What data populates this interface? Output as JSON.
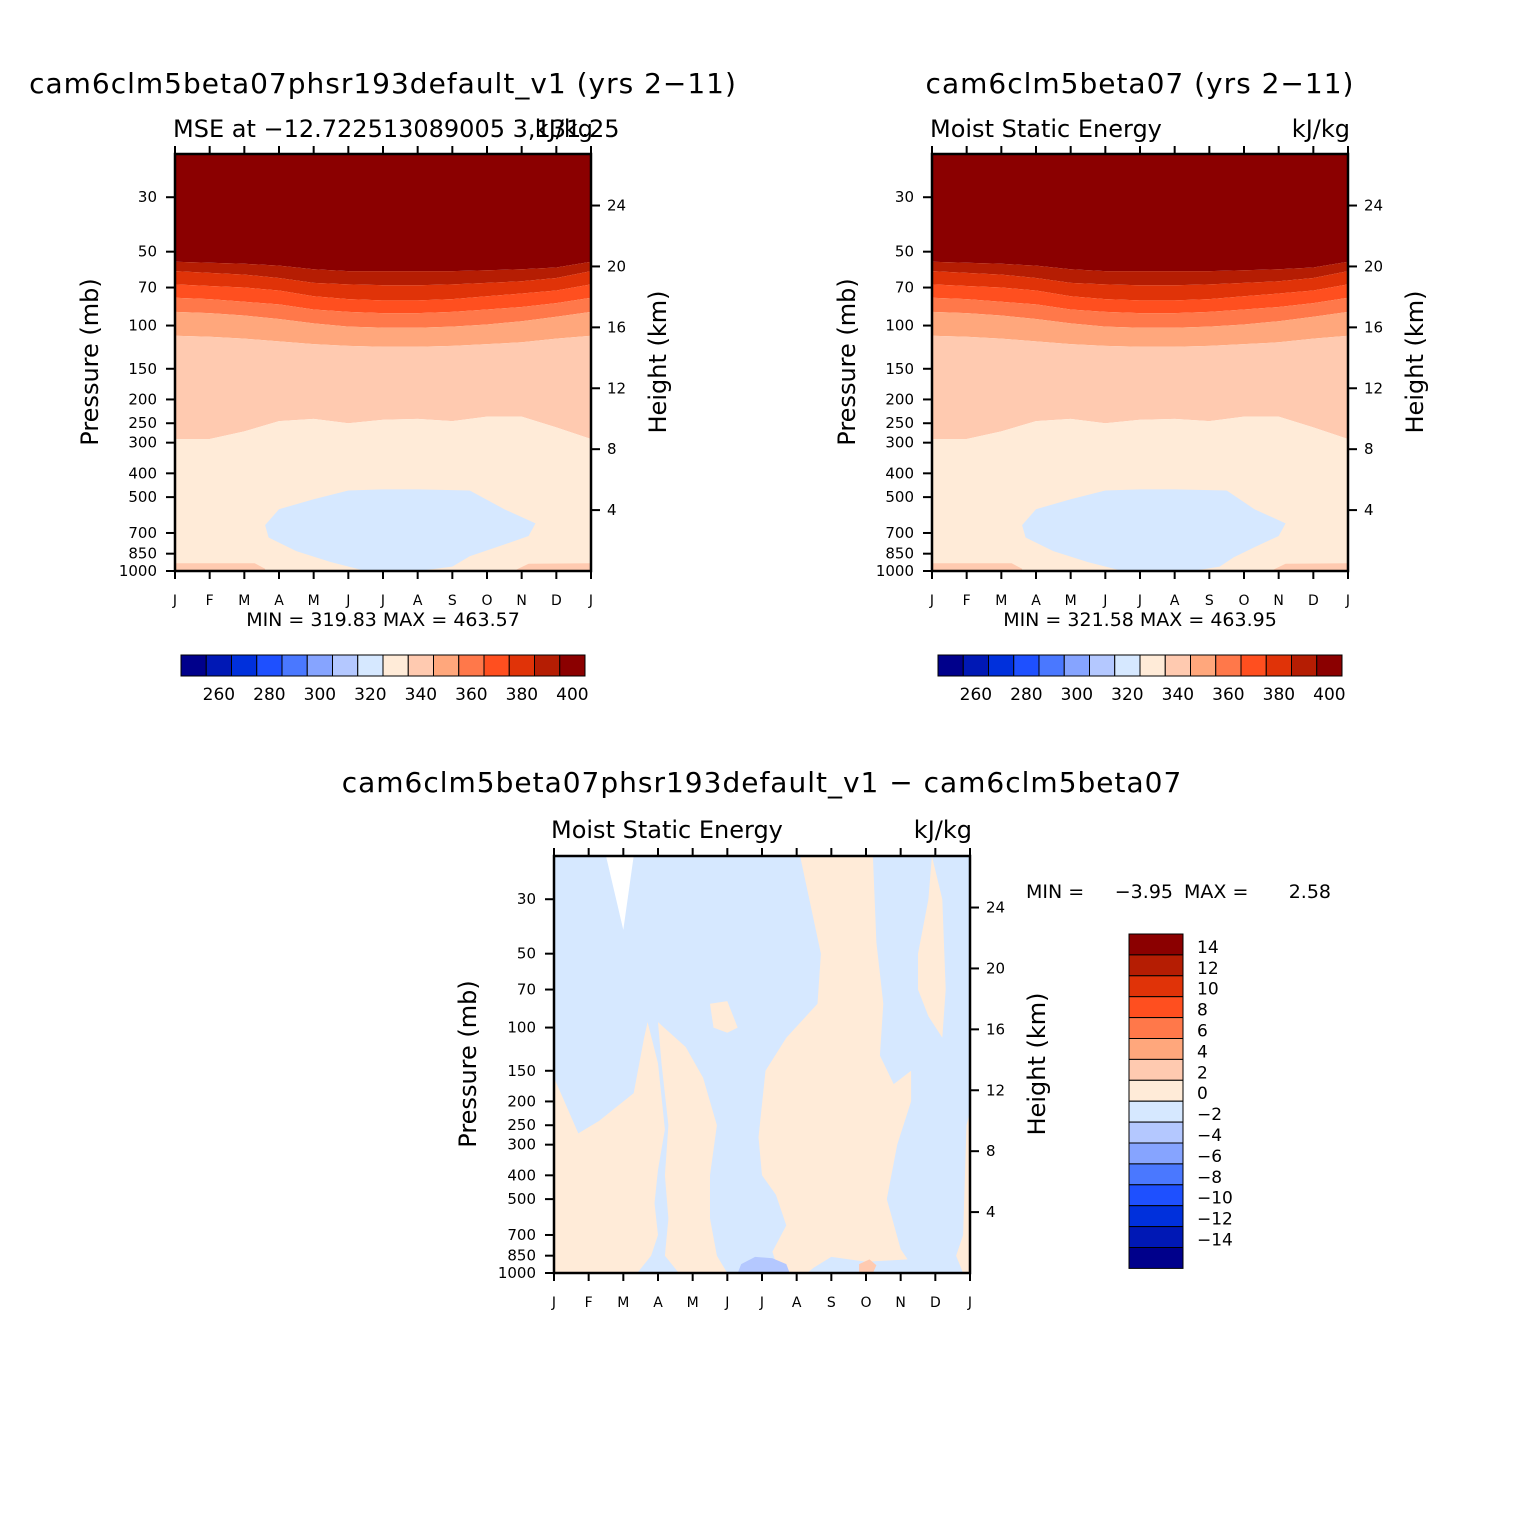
{
  "colors": {
    "scale": [
      "#00008b",
      "#0018b5",
      "#0030dc",
      "#1e50ff",
      "#4a78ff",
      "#86a4ff",
      "#b4c8ff",
      "#d6e8ff",
      "#ffebd8",
      "#ffcab0",
      "#ffa77c",
      "#ff784a",
      "#ff4f1f",
      "#e03308",
      "#b51d03",
      "#8b0000"
    ]
  },
  "panels": [
    {
      "id": "left",
      "title": "cam6clm5beta07phsr193default_v1 (yrs 2−11)",
      "subtitle_left": "MSE at −12.722513089005 3,131.25",
      "subtitle_right": "kJ/kg",
      "y_label": "Pressure (mb)",
      "y2_label": "Height (km)",
      "stats": "MIN = 319.83 MAX = 463.57"
    },
    {
      "id": "right",
      "title": "cam6clm5beta07 (yrs 2−11)",
      "subtitle_left": "Moist Static Energy",
      "subtitle_right": "kJ/kg",
      "y_label": "Pressure (mb)",
      "y2_label": "Height (km)",
      "stats": "MIN = 321.58 MAX = 463.95"
    },
    {
      "id": "diff",
      "title": "cam6clm5beta07phsr193default_v1 − cam6clm5beta07",
      "subtitle_left": "Moist Static Energy",
      "subtitle_right": "kJ/kg",
      "y_label": "Pressure (mb)",
      "y2_label": "Height (km)",
      "stats_min_label": "MIN =",
      "stats_min": "−3.95",
      "stats_max_label": "MAX =",
      "stats_max": "2.58"
    }
  ],
  "chart_data": [
    {
      "type": "heatmap",
      "title": "cam6clm5beta07phsr193default_v1 (yrs 2−11)",
      "x_ticks": [
        "J",
        "F",
        "M",
        "A",
        "M",
        "J",
        "J",
        "A",
        "S",
        "O",
        "N",
        "D",
        "J"
      ],
      "y_ticks": [
        30,
        50,
        70,
        100,
        150,
        200,
        250,
        300,
        400,
        500,
        700,
        850,
        1000
      ],
      "y2_ticks": [
        24,
        20,
        16,
        12,
        8,
        4
      ],
      "y_scale": "log",
      "ylim": [
        20,
        1000
      ],
      "colorbar_ticks": [
        260,
        280,
        300,
        320,
        340,
        360,
        380,
        400
      ],
      "contour_levels": [
        250,
        260,
        270,
        280,
        290,
        300,
        310,
        320,
        330,
        340,
        350,
        360,
        370,
        380,
        390,
        400,
        410
      ],
      "bands": [
        {
          "level": "> 400",
          "top_mb": 20,
          "bottom_mb": 55
        },
        {
          "level": "390-400",
          "top_mb": 55,
          "bottom_mb": 60
        },
        {
          "level": "380-390",
          "top_mb": 60,
          "bottom_mb": 68
        },
        {
          "level": "370-380",
          "top_mb": 68,
          "bottom_mb": 77
        },
        {
          "level": "360-370",
          "top_mb": 77,
          "bottom_mb": 88
        },
        {
          "level": "350-360",
          "top_mb": 88,
          "bottom_mb": 112
        },
        {
          "level": "340-350",
          "top_mb": 112,
          "bottom_mb": 280
        },
        {
          "level": "330-340",
          "top_mb": 280,
          "bottom_mb": 1000
        },
        {
          "level": "320-330",
          "region": "Apr-Oct, 480-900 mb"
        }
      ],
      "min": 319.83,
      "max": 463.57
    },
    {
      "type": "heatmap",
      "title": "cam6clm5beta07 (yrs 2−11)",
      "x_ticks": [
        "J",
        "F",
        "M",
        "A",
        "M",
        "J",
        "J",
        "A",
        "S",
        "O",
        "N",
        "D",
        "J"
      ],
      "y_ticks": [
        30,
        50,
        70,
        100,
        150,
        200,
        250,
        300,
        400,
        500,
        700,
        850,
        1000
      ],
      "y2_ticks": [
        24,
        20,
        16,
        12,
        8,
        4
      ],
      "y_scale": "log",
      "ylim": [
        20,
        1000
      ],
      "colorbar_ticks": [
        260,
        280,
        300,
        320,
        340,
        360,
        380,
        400
      ],
      "min": 321.58,
      "max": 463.95
    },
    {
      "type": "heatmap",
      "title": "cam6clm5beta07phsr193default_v1 − cam6clm5beta07",
      "x_ticks": [
        "J",
        "F",
        "M",
        "A",
        "M",
        "J",
        "J",
        "A",
        "S",
        "O",
        "N",
        "D",
        "J"
      ],
      "y_ticks": [
        30,
        50,
        70,
        100,
        150,
        200,
        250,
        300,
        400,
        500,
        700,
        850,
        1000
      ],
      "y2_ticks": [
        24,
        20,
        16,
        12,
        8,
        4
      ],
      "y_scale": "log",
      "ylim": [
        20,
        1000
      ],
      "colorbar_ticks": [
        14,
        12,
        10,
        8,
        6,
        4,
        2,
        0,
        -2,
        -4,
        -6,
        -8,
        -10,
        -12,
        -14
      ],
      "pattern": "alternating 0 to 2 and -2 to 0 regions; small -4 to -2 near 1000 mb in Jun-Jul; small 2 to 4 near 1000 mb in Oct",
      "min": -3.95,
      "max": 2.58
    }
  ]
}
